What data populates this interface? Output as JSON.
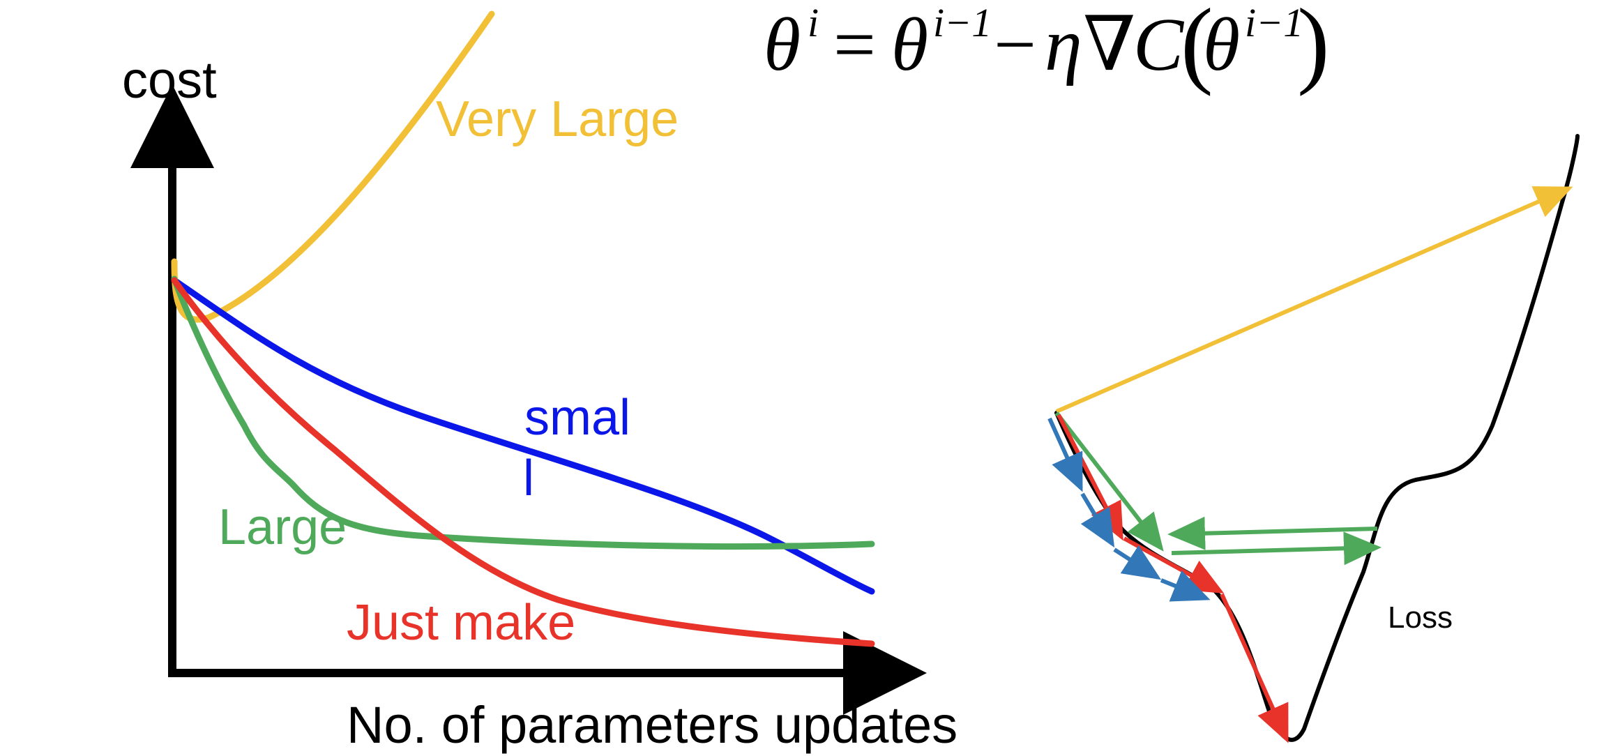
{
  "formula": {
    "theta": "θ",
    "sup_i": "i",
    "equals": "=",
    "sup_i_minus_1": "i−1",
    "minus": "−",
    "eta": "η",
    "nabla": "∇",
    "cost_fn": "C",
    "lparen": "(",
    "rparen": ")"
  },
  "left_plot": {
    "y_label": "cost",
    "x_label": "No. of parameters updates",
    "curves": [
      {
        "key": "very_large",
        "label": "Very Large",
        "color": "#F2C037"
      },
      {
        "key": "small",
        "label": "smal",
        "label_suffix": "l",
        "color": "#0B16E8"
      },
      {
        "key": "large",
        "label": "Large",
        "color": "#4EAA5A"
      },
      {
        "key": "just_make",
        "label": "Just make",
        "color": "#E8332A"
      }
    ]
  },
  "right_plot": {
    "curve_label": "Loss",
    "curve_color": "#000000",
    "step_colors": {
      "very_large": "#F2C037",
      "large": "#4EAA5A",
      "just_make": "#E8332A",
      "small": "#3278B8"
    }
  }
}
